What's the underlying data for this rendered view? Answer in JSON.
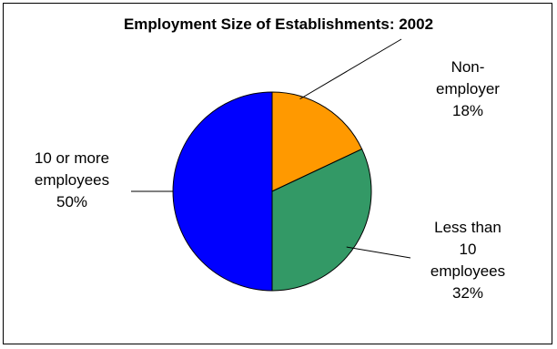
{
  "chart_data": {
    "type": "pie",
    "title": "Employment Size of Establishments: 2002",
    "slices": [
      {
        "name_lines": [
          "Non-",
          "employer"
        ],
        "value": 18,
        "value_label": "18%",
        "color": "#FF9900"
      },
      {
        "name_lines": [
          "Less than",
          "10",
          "employees"
        ],
        "value": 32,
        "value_label": "32%",
        "color": "#339966"
      },
      {
        "name_lines": [
          "10 or more",
          "employees"
        ],
        "value": 50,
        "value_label": "50%",
        "color": "#0000FF"
      }
    ],
    "legend": "none",
    "data_labels": "outside with leader lines"
  }
}
